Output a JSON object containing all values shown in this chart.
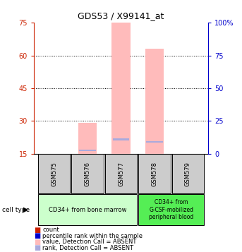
{
  "title": "GDS53 / X99141_at",
  "samples": [
    "GSM575",
    "GSM576",
    "GSM577",
    "GSM578",
    "GSM579"
  ],
  "ylim_left": [
    15,
    75
  ],
  "ylim_right": [
    0,
    100
  ],
  "yticks_left": [
    15,
    30,
    45,
    60,
    75
  ],
  "yticks_right": [
    0,
    25,
    50,
    75,
    100
  ],
  "pink_bar_tops": [
    15,
    29,
    75,
    63,
    15
  ],
  "blue_marker_values": [
    0,
    16.5,
    21.5,
    20.5,
    0
  ],
  "pink_bar_color": "#ffbbbb",
  "blue_marker_color": "#aaaadd",
  "cell_type_groups": [
    {
      "label": "CD34+ from bone marrow",
      "start": 0,
      "end": 2,
      "color": "#ccffcc"
    },
    {
      "label": "CD34+ from\nG-CSF-mobilized\nperipheral blood",
      "start": 3,
      "end": 4,
      "color": "#55ee55"
    }
  ],
  "left_axis_color": "#cc2200",
  "right_axis_color": "#0000cc",
  "bar_width": 0.55,
  "sample_box_color": "#cccccc",
  "legend_items": [
    {
      "color": "#cc2200",
      "label": "count"
    },
    {
      "color": "#0000cc",
      "label": "percentile rank within the sample"
    },
    {
      "color": "#ffbbbb",
      "label": "value, Detection Call = ABSENT"
    },
    {
      "color": "#aaaadd",
      "label": "rank, Detection Call = ABSENT"
    }
  ]
}
